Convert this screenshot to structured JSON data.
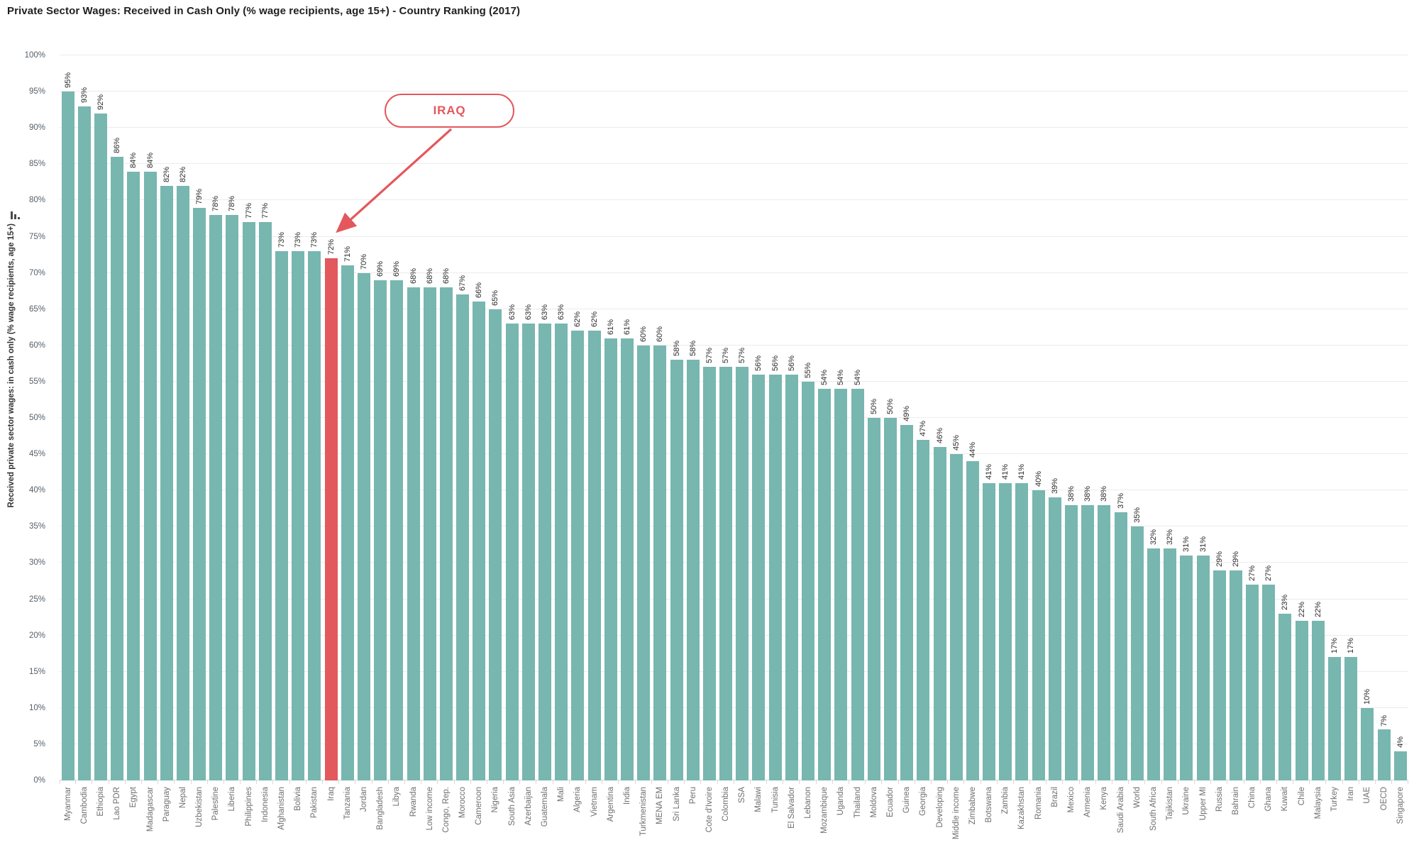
{
  "title": "Private Sector Wages: Received in Cash Only (% wage recipients, age 15+) - Country Ranking (2017)",
  "annotation": {
    "label": "IRAQ",
    "target": "Iraq"
  },
  "colors": {
    "bar": "#78b6b0",
    "highlight": "#e2585c",
    "annotation": "#e4575c"
  },
  "chart_data": {
    "type": "bar",
    "title": "Private Sector Wages: Received in Cash Only (% wage recipients, age 15+) - Country Ranking (2017)",
    "xlabel": "",
    "ylabel": "Received private sector wages: in cash only (% wage recipients, age 15+)",
    "ylim": [
      0,
      100
    ],
    "y_tick_step": 5,
    "y_tick_format": "percent",
    "y_tick_labels": [
      "0%",
      "5%",
      "10%",
      "15%",
      "20%",
      "25%",
      "30%",
      "35%",
      "40%",
      "45%",
      "50%",
      "55%",
      "60%",
      "65%",
      "70%",
      "75%",
      "80%",
      "85%",
      "90%",
      "95%",
      "100%"
    ],
    "grid": true,
    "legend": false,
    "value_label_format": "percent",
    "highlight_category": "Iraq",
    "categories": [
      "Myanmar",
      "Cambodia",
      "Ethiopia",
      "Lao PDR",
      "Egypt",
      "Madagascar",
      "Paraguay",
      "Nepal",
      "Uzbekistan",
      "Palestine",
      "Liberia",
      "Philippines",
      "Indonesia",
      "Afghanistan",
      "Bolivia",
      "Pakistan",
      "Iraq",
      "Tanzania",
      "Jordan",
      "Bangladesh",
      "Libya",
      "Rwanda",
      "Low income",
      "Congo, Rep.",
      "Morocco",
      "Cameroon",
      "Nigeria",
      "South Asia",
      "Azerbaijan",
      "Guatemala",
      "Mali",
      "Algeria",
      "Vietnam",
      "Argentina",
      "India",
      "Turkmenistan",
      "MENA EM",
      "Sri Lanka",
      "Peru",
      "Cote d'Ivoire",
      "Colombia",
      "SSA",
      "Malawi",
      "Tunisia",
      "El Salvador",
      "Lebanon",
      "Mozambique",
      "Uganda",
      "Thailand",
      "Moldova",
      "Ecuador",
      "Guinea",
      "Georgia",
      "Developing",
      "Middle income",
      "Zimbabwe",
      "Botswana",
      "Zambia",
      "Kazakhstan",
      "Romania",
      "Brazil",
      "Mexico",
      "Armenia",
      "Kenya",
      "Saudi Arabia",
      "World",
      "South Africa",
      "Tajikistan",
      "Ukraine",
      "Upper MI",
      "Russia",
      "Bahrain",
      "China",
      "Ghana",
      "Kuwait",
      "Chile",
      "Malaysia",
      "Turkey",
      "Iran",
      "UAE",
      "OECD",
      "Singapore"
    ],
    "values": [
      95,
      93,
      92,
      86,
      84,
      84,
      82,
      82,
      79,
      78,
      78,
      77,
      77,
      73,
      73,
      73,
      72,
      71,
      70,
      69,
      69,
      68,
      68,
      68,
      67,
      66,
      65,
      63,
      63,
      63,
      63,
      62,
      62,
      61,
      61,
      60,
      60,
      58,
      58,
      57,
      57,
      57,
      56,
      56,
      56,
      55,
      54,
      54,
      54,
      50,
      50,
      49,
      47,
      46,
      45,
      44,
      41,
      41,
      41,
      40,
      39,
      38,
      38,
      38,
      37,
      35,
      32,
      32,
      31,
      31,
      29,
      29,
      27,
      27,
      23,
      22,
      22,
      17,
      17,
      10,
      7,
      4
    ]
  }
}
